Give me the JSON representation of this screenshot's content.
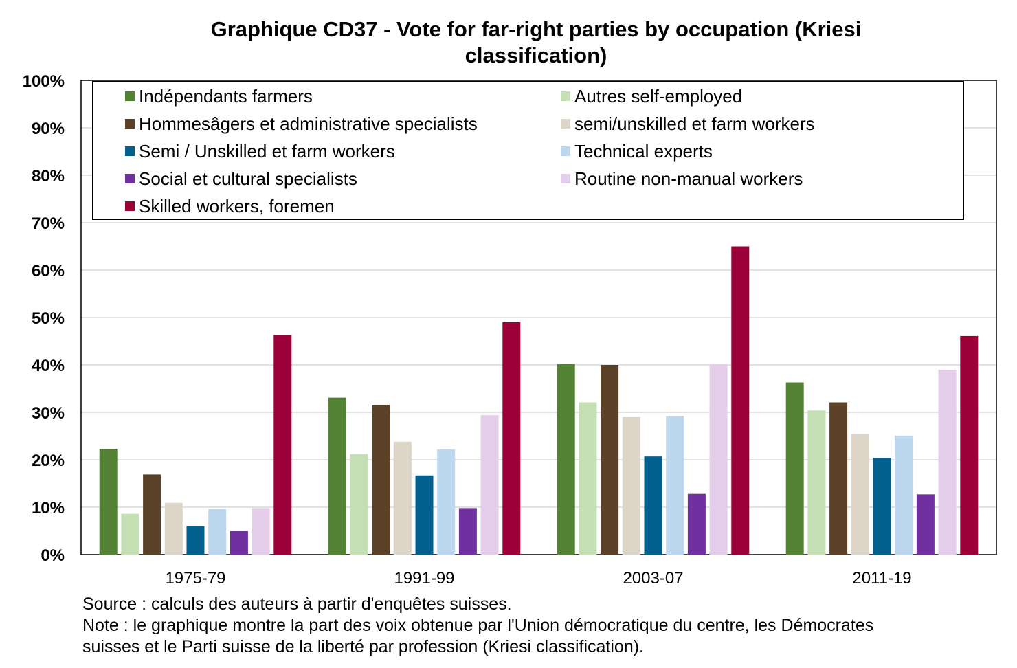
{
  "chart_data": {
    "type": "bar",
    "title": "Graphique CD37 - Vote for far-right parties by occupation (Kriesi classification)",
    "xlabel": "",
    "ylabel": "",
    "ylim": [
      0,
      100
    ],
    "yticks": [
      "0%",
      "10%",
      "20%",
      "30%",
      "40%",
      "50%",
      "60%",
      "70%",
      "80%",
      "90%",
      "100%"
    ],
    "grid": true,
    "legend_position": "top",
    "categories": [
      "1975-79",
      "1991-99",
      "2003-07",
      "2011-19"
    ],
    "series": [
      {
        "name": "Indépendants farmers",
        "color": "#548235",
        "values": [
          22.3,
          33.1,
          40.2,
          36.3
        ]
      },
      {
        "name": "Autres self-employed",
        "color": "#c5e0b4",
        "values": [
          8.6,
          21.2,
          32.1,
          30.4
        ]
      },
      {
        "name": "Hommesâgers et administrative specialists",
        "color": "#5b4128",
        "values": [
          16.9,
          31.6,
          40.0,
          32.1
        ]
      },
      {
        "name": "semi/unskilled et farm workers",
        "color": "#ddd5c7",
        "values": [
          10.9,
          23.8,
          29.0,
          25.4
        ]
      },
      {
        "name": "Semi / Unskilled et farm workers",
        "color": "#02608f",
        "values": [
          6.0,
          16.7,
          20.7,
          20.4
        ]
      },
      {
        "name": "Technical experts",
        "color": "#bdd7ee",
        "values": [
          9.6,
          22.2,
          29.2,
          25.1
        ]
      },
      {
        "name": "Social et cultural specialists",
        "color": "#7030a0",
        "values": [
          5.0,
          9.8,
          12.8,
          12.7
        ]
      },
      {
        "name": "Routine non-manual workers",
        "color": "#e4cde8",
        "values": [
          9.8,
          29.4,
          40.2,
          39.0
        ]
      },
      {
        "name": "Skilled workers, foremen",
        "color": "#9b0038",
        "values": [
          46.3,
          49.0,
          65.0,
          46.1
        ]
      }
    ]
  },
  "notes": {
    "source": "Source : calculs des auteurs à partir d'enquêtes suisses.",
    "note_line1": "Note : le graphique montre la part des voix obtenue par l'Union démocratique du centre, les Démocrates",
    "note_line2": "suisses et le Parti suisse de la liberté par profession (Kriesi classification)."
  }
}
